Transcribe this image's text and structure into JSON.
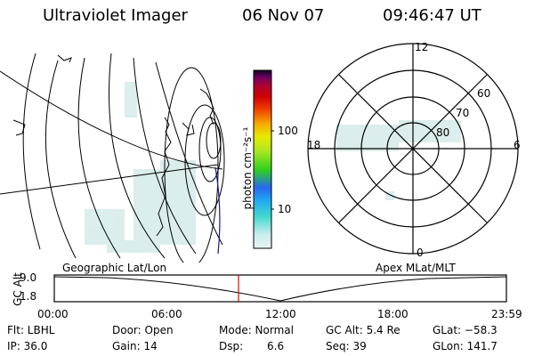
{
  "header": {
    "instrument": "Ultraviolet Imager",
    "date": "06 Nov 07",
    "time": "09:46:47 UT"
  },
  "colorbar": {
    "unit_label": "photon cm⁻²s⁻¹",
    "ticks": [
      "100",
      "10"
    ],
    "colors": [
      "#e8f4f4",
      "#6fd8d0",
      "#1cd0c8",
      "#20a8f0",
      "#2868f0",
      "#30d020",
      "#90e020",
      "#e8e800",
      "#f8a800",
      "#f04000",
      "#e00000",
      "#b00030",
      "#800050",
      "#200030"
    ]
  },
  "polar_plot": {
    "labels": {
      "top": "12",
      "bottom": "0",
      "left": "18",
      "right": "6",
      "lat60": "60",
      "lat70": "70",
      "lat80": "80"
    }
  },
  "timeline": {
    "left_label": "Geographic Lat/Lon",
    "right_label": "Apex MLat/MLT",
    "axis_label": "GC Alt",
    "y_ticks": [
      "9.0",
      "1.8"
    ],
    "x_ticks": [
      "00:00",
      "06:00",
      "12:00",
      "18:00",
      "23:59"
    ],
    "marker_color": "#e00000"
  },
  "status": {
    "flt": "Flt: LBHL",
    "ip": "IP: 36.0",
    "door": "Door: Open",
    "gain": "Gain: 14",
    "mode": "Mode: Normal",
    "dsp_label": "Dsp:",
    "dsp_value": "6.6",
    "gc_alt": "GC Alt: 5.4 Re",
    "seq": "Seq: 39",
    "glat": "GLat: −58.3",
    "glon": "GLon: 141.7"
  }
}
